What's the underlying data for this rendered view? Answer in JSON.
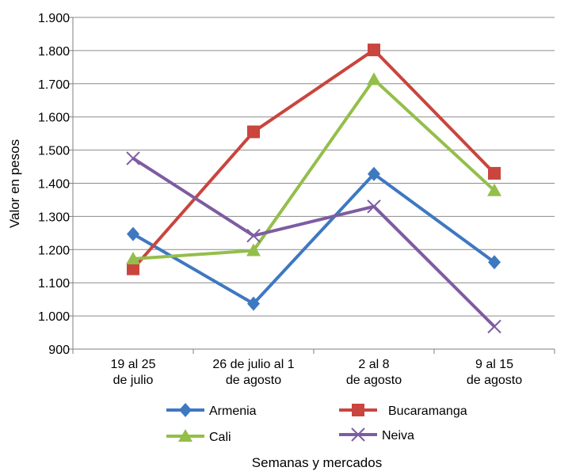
{
  "chart_data": {
    "type": "line",
    "title": "",
    "xlabel": "Semanas y mercados",
    "ylabel": "Valor en pesos",
    "ylim": [
      900,
      1900
    ],
    "y_ticks": [
      "900",
      "1.000",
      "1.100",
      "1.200",
      "1.300",
      "1.400",
      "1.500",
      "1.600",
      "1.700",
      "1.800",
      "1.900"
    ],
    "y_tick_values": [
      900,
      1000,
      1100,
      1200,
      1300,
      1400,
      1500,
      1600,
      1700,
      1800,
      1900
    ],
    "categories": [
      [
        "19 al 25",
        "de julio"
      ],
      [
        "26 de julio al 1",
        "de agosto"
      ],
      [
        "2 al 8",
        "de agosto"
      ],
      [
        "9 al 15",
        "de agosto"
      ]
    ],
    "grid": true,
    "legend_position": "bottom",
    "series": [
      {
        "name": "Armenia",
        "color": "#3E78C1",
        "marker": "diamond",
        "values": [
          1247,
          1037,
          1428,
          1162
        ]
      },
      {
        "name": "Bucaramanga",
        "color": "#C9453E",
        "marker": "square",
        "values": [
          1142,
          1555,
          1802,
          1430
        ]
      },
      {
        "name": "Cali",
        "color": "#94BE4A",
        "marker": "triangle",
        "values": [
          1172,
          1197,
          1713,
          1378
        ]
      },
      {
        "name": "Neiva",
        "color": "#7E5CA1",
        "marker": "x",
        "values": [
          1475,
          1242,
          1330,
          968
        ]
      }
    ]
  }
}
